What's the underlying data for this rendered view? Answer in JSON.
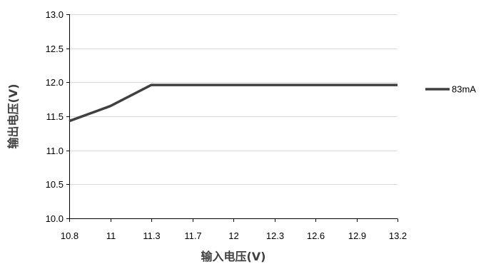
{
  "chart_data": {
    "type": "line",
    "title": "",
    "xlabel": "输入电压(V)",
    "ylabel": "输出电压(V)",
    "categories": [
      "10.8",
      "11",
      "11.3",
      "11.7",
      "12",
      "12.3",
      "12.6",
      "12.9",
      "13.2"
    ],
    "y_ticks": [
      "10.0",
      "10.5",
      "11.0",
      "11.5",
      "12.0",
      "12.5",
      "13.0"
    ],
    "ylim": [
      10.0,
      13.0
    ],
    "grid": "horizontal",
    "legend_position": "right",
    "series": [
      {
        "name": "83mA",
        "color": "#404040",
        "values": [
          11.43,
          11.65,
          11.96,
          11.96,
          11.96,
          11.96,
          11.96,
          11.96,
          11.96
        ]
      }
    ]
  }
}
